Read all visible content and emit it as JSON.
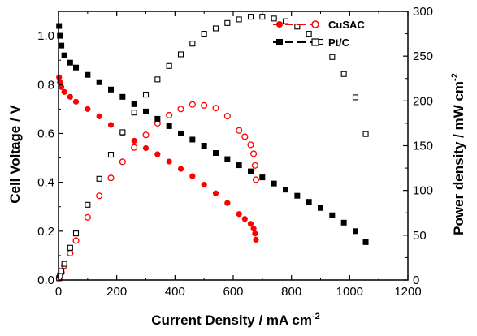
{
  "chart_data": {
    "type": "scatter",
    "x_axis": {
      "label": "Current Density / mA cm",
      "label_sup": "-2",
      "range": [
        0,
        1200
      ],
      "ticks": [
        0,
        200,
        400,
        600,
        800,
        1000,
        1200
      ]
    },
    "y_left_axis": {
      "label": "Cell Voltage / V",
      "range": [
        0.0,
        1.1
      ],
      "ticks": [
        0.0,
        0.2,
        0.4,
        0.6,
        0.8,
        1.0
      ],
      "tick_labels": [
        "0.0",
        "0.2",
        "0.4",
        "0.6",
        "0.8",
        "1.0"
      ]
    },
    "y_right_axis": {
      "label": "Power density / mW cm",
      "label_sup": "-2",
      "range": [
        0,
        300
      ],
      "ticks": [
        0,
        50,
        100,
        150,
        200,
        250,
        300
      ]
    },
    "legend": {
      "placement": "top-right"
    },
    "series": [
      {
        "name": "CuSAC",
        "color": "#ff0000",
        "voltage_marker": "filled-circle",
        "power_marker": "open-circle",
        "x": [
          2,
          5,
          10,
          20,
          40,
          60,
          100,
          140,
          180,
          220,
          260,
          300,
          340,
          380,
          420,
          460,
          500,
          540,
          580,
          620,
          640,
          660,
          670,
          675,
          678
        ],
        "voltage": [
          0.83,
          0.81,
          0.79,
          0.77,
          0.75,
          0.73,
          0.7,
          0.67,
          0.635,
          0.6,
          0.57,
          0.54,
          0.515,
          0.485,
          0.455,
          0.425,
          0.39,
          0.355,
          0.315,
          0.27,
          0.25,
          0.23,
          0.21,
          0.19,
          0.165
        ],
        "power": [
          2,
          4,
          8,
          16,
          30,
          44,
          70,
          94,
          114,
          132,
          148,
          162,
          175,
          184,
          191,
          196,
          195,
          192,
          183,
          167,
          160,
          151,
          141,
          128,
          112
        ]
      },
      {
        "name": "Pt/C",
        "color": "#000000",
        "voltage_marker": "filled-square",
        "power_marker": "open-square",
        "x": [
          2,
          5,
          10,
          20,
          40,
          60,
          100,
          140,
          180,
          220,
          260,
          300,
          340,
          380,
          420,
          460,
          500,
          540,
          580,
          620,
          660,
          700,
          740,
          780,
          820,
          860,
          900,
          940,
          980,
          1020,
          1055
        ],
        "voltage": [
          1.04,
          1.0,
          0.96,
          0.92,
          0.89,
          0.87,
          0.84,
          0.81,
          0.78,
          0.75,
          0.72,
          0.69,
          0.66,
          0.63,
          0.6,
          0.575,
          0.55,
          0.52,
          0.495,
          0.47,
          0.445,
          0.42,
          0.395,
          0.37,
          0.345,
          0.32,
          0.295,
          0.265,
          0.235,
          0.2,
          0.155
        ],
        "power": [
          2,
          5,
          10,
          18,
          36,
          52,
          84,
          113,
          140,
          165,
          187,
          207,
          224,
          239,
          252,
          264,
          275,
          281,
          287,
          291,
          294,
          294,
          292,
          289,
          283,
          275,
          266,
          249,
          230,
          204,
          163
        ]
      }
    ]
  }
}
